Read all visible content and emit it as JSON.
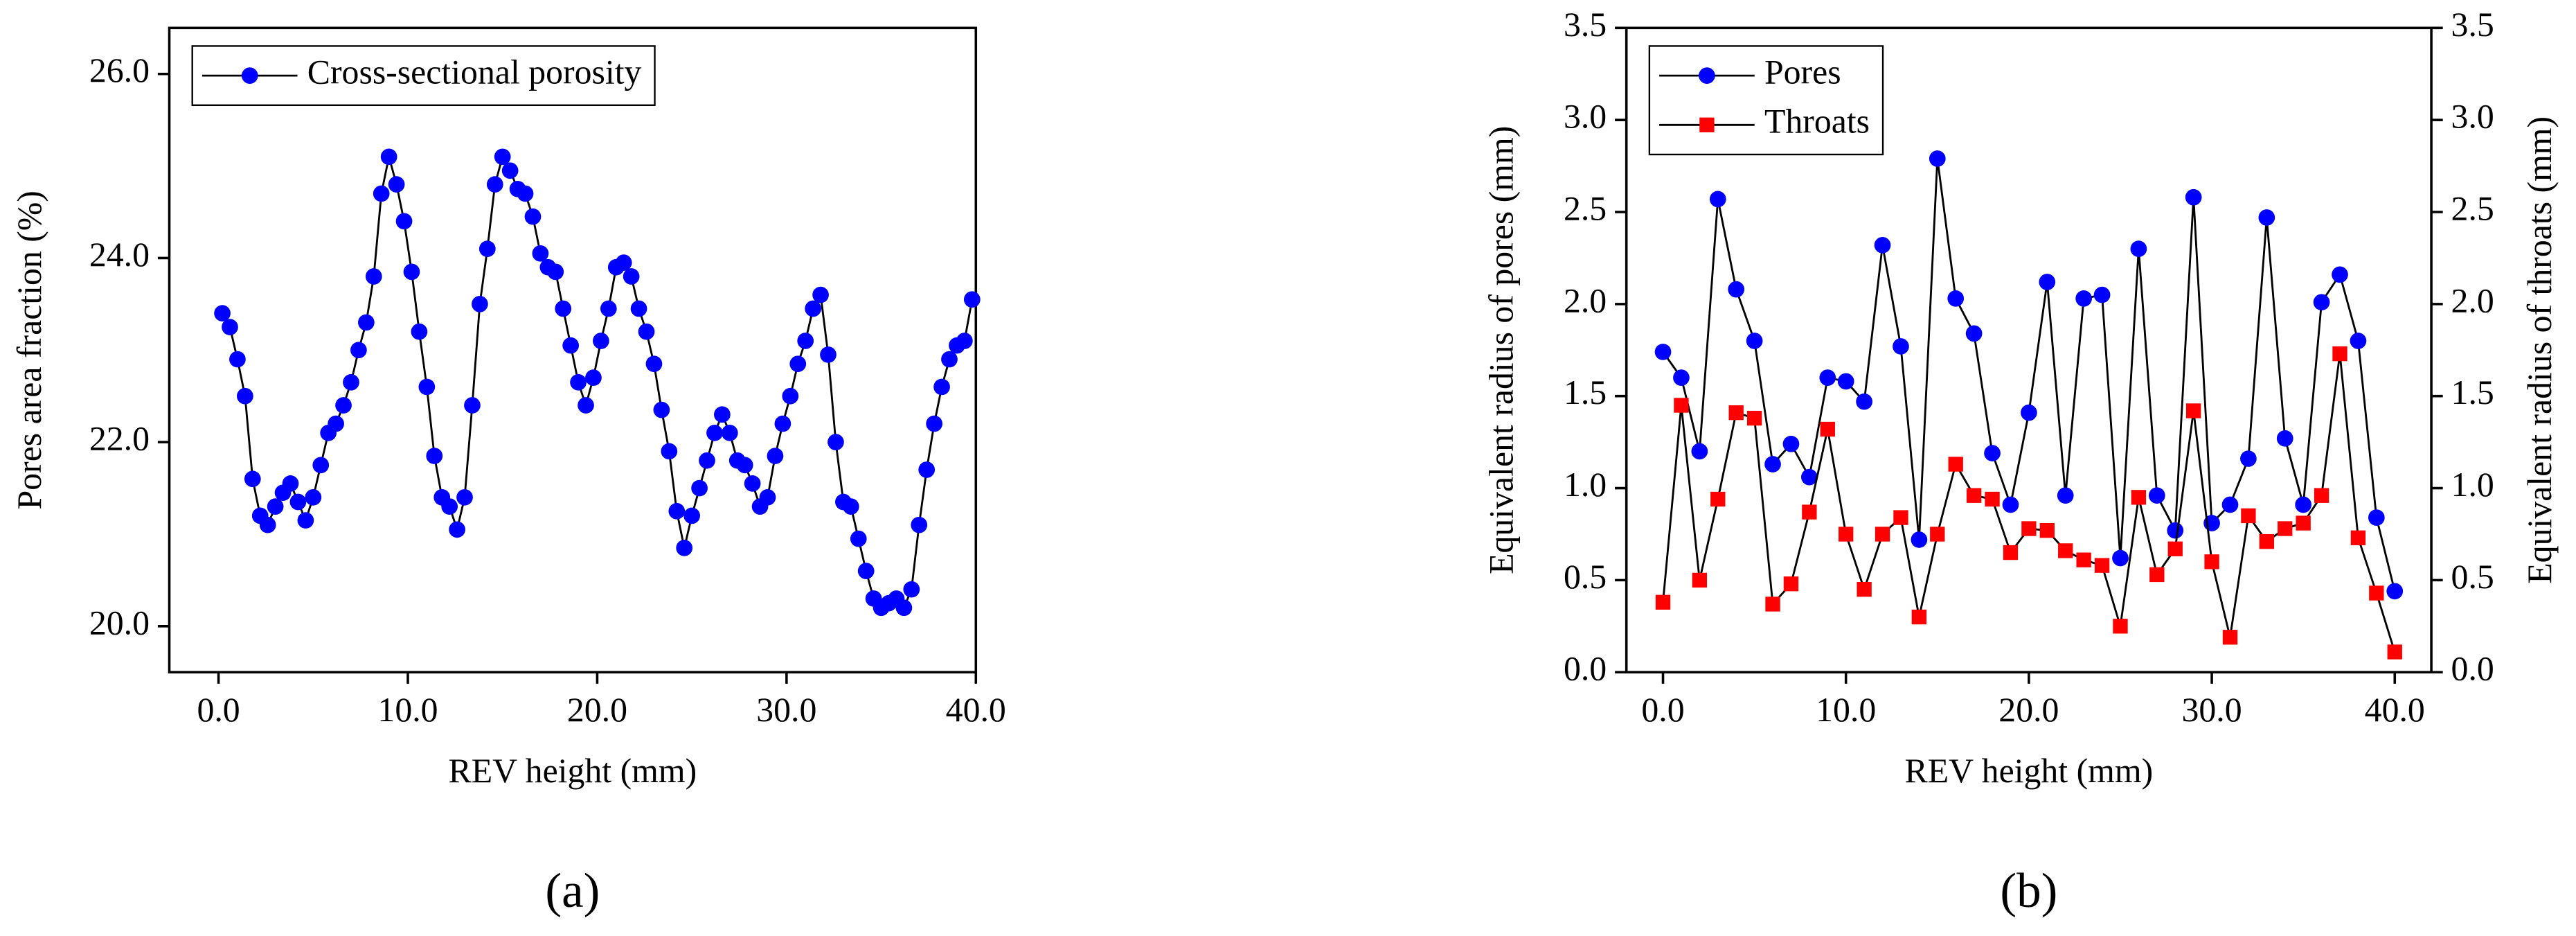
{
  "chart_data": [
    {
      "type": "line",
      "panel": "(a)",
      "xlabel": "REV height (mm)",
      "ylabel": "Pores area fraction (%)",
      "xlim": [
        -2.6,
        40
      ],
      "ylim": [
        19.5,
        26.5
      ],
      "xticks": [
        {
          "value": 0,
          "label": "0.0"
        },
        {
          "value": 10,
          "label": "10.0"
        },
        {
          "value": 20,
          "label": "20.0"
        },
        {
          "value": 30,
          "label": "30.0"
        },
        {
          "value": 40,
          "label": "40.0"
        }
      ],
      "yticks": [
        {
          "value": 20,
          "label": "20.0"
        },
        {
          "value": 22,
          "label": "22.0"
        },
        {
          "value": 24,
          "label": "24.0"
        },
        {
          "value": 26,
          "label": "26.0"
        }
      ],
      "legend": "upper left",
      "x": [
        0.2,
        0.6,
        1.0,
        1.4,
        1.8,
        2.2,
        2.6,
        3.0,
        3.4,
        3.8,
        4.2,
        4.6,
        5.0,
        5.4,
        5.8,
        6.2,
        6.6,
        7.0,
        7.4,
        7.8,
        8.2,
        8.6,
        9.0,
        9.4,
        9.8,
        10.2,
        10.6,
        11.0,
        11.4,
        11.8,
        12.2,
        12.6,
        13.0,
        13.4,
        13.8,
        14.2,
        14.6,
        15.0,
        15.4,
        15.8,
        16.2,
        16.6,
        17.0,
        17.4,
        17.8,
        18.2,
        18.6,
        19.0,
        19.4,
        19.8,
        20.2,
        20.6,
        21.0,
        21.4,
        21.8,
        22.2,
        22.6,
        23.0,
        23.4,
        23.8,
        24.2,
        24.6,
        25.0,
        25.4,
        25.8,
        26.2,
        26.6,
        27.0,
        27.4,
        27.8,
        28.2,
        28.6,
        29.0,
        29.4,
        29.8,
        30.2,
        30.6,
        31.0,
        31.4,
        31.8,
        32.2,
        32.6,
        33.0,
        33.4,
        33.8,
        34.2,
        34.6,
        35.0,
        35.4,
        35.8,
        36.2,
        36.6,
        37.0,
        37.4,
        37.8,
        38.2,
        38.6,
        39.0,
        39.4,
        39.8
      ],
      "series": [
        {
          "name": "Cross-sectional porosity",
          "color": "#0000ff",
          "line_color": "#000000",
          "marker": "circle",
          "values": [
            23.4,
            23.25,
            22.9,
            22.5,
            21.6,
            21.2,
            21.1,
            21.3,
            21.45,
            21.55,
            21.35,
            21.15,
            21.4,
            21.75,
            22.1,
            22.2,
            22.4,
            22.65,
            23.0,
            23.3,
            23.8,
            24.7,
            25.1,
            24.8,
            24.4,
            23.85,
            23.2,
            22.6,
            21.85,
            21.4,
            21.3,
            21.05,
            21.4,
            22.4,
            23.5,
            24.1,
            24.8,
            25.1,
            24.95,
            24.75,
            24.7,
            24.45,
            24.05,
            23.9,
            23.85,
            23.45,
            23.05,
            22.65,
            22.4,
            22.7,
            23.1,
            23.45,
            23.9,
            23.95,
            23.8,
            23.45,
            23.2,
            22.85,
            22.35,
            21.9,
            21.25,
            20.85,
            21.2,
            21.5,
            21.8,
            22.1,
            22.3,
            22.1,
            21.8,
            21.75,
            21.55,
            21.3,
            21.4,
            21.85,
            22.2,
            22.5,
            22.85,
            23.1,
            23.45,
            23.6,
            22.95,
            22.0,
            21.35,
            21.3,
            20.95,
            20.6,
            20.3,
            20.2,
            20.25,
            20.3,
            20.2,
            20.4,
            21.1,
            21.7,
            22.2,
            22.6,
            22.9,
            23.05,
            23.1,
            23.55
          ]
        }
      ]
    },
    {
      "type": "line",
      "panel": "(b)",
      "xlabel": "REV height (mm)",
      "ylabel": "Equivalent radius of pores (mm)",
      "y2label": "Equivalent radius of throats (mm)",
      "xlim": [
        -2,
        42
      ],
      "ylim": [
        0,
        3.5
      ],
      "y2lim": [
        0,
        3.5
      ],
      "xticks": [
        {
          "value": 0,
          "label": "0.0"
        },
        {
          "value": 10,
          "label": "10.0"
        },
        {
          "value": 20,
          "label": "20.0"
        },
        {
          "value": 30,
          "label": "30.0"
        },
        {
          "value": 40,
          "label": "40.0"
        }
      ],
      "yticks": [
        {
          "value": 0,
          "label": "0.0"
        },
        0.5,
        {
          "value": 1,
          "label": "1.0"
        },
        1.5,
        {
          "value": 2,
          "label": "2.0"
        },
        2.5,
        {
          "value": 3,
          "label": "3.0"
        },
        3.5
      ],
      "y2ticks": [
        {
          "value": 0,
          "label": "0.0"
        },
        0.5,
        {
          "value": 1,
          "label": "1.0"
        },
        1.5,
        {
          "value": 2,
          "label": "2.0"
        },
        2.5,
        {
          "value": 3,
          "label": "3.0"
        },
        3.5
      ],
      "legend": "upper left",
      "x": [
        0,
        1,
        2,
        3,
        4,
        5,
        6,
        7,
        8,
        9,
        10,
        11,
        12,
        13,
        14,
        15,
        16,
        17,
        18,
        19,
        20,
        21,
        22,
        23,
        24,
        25,
        26,
        27,
        28,
        29,
        30,
        31,
        32,
        33,
        34,
        35,
        36,
        37,
        38,
        39,
        40
      ],
      "series": [
        {
          "name": "Pores",
          "color": "#0000ff",
          "line_color": "#000000",
          "marker": "circle",
          "values": [
            1.74,
            1.6,
            1.2,
            2.57,
            2.08,
            1.8,
            1.13,
            1.24,
            1.06,
            1.6,
            1.58,
            1.47,
            2.32,
            1.77,
            0.72,
            2.79,
            2.03,
            1.84,
            1.19,
            0.91,
            1.41,
            2.12,
            0.96,
            2.03,
            2.05,
            0.62,
            2.3,
            0.96,
            0.77,
            2.58,
            0.81,
            0.91,
            1.16,
            2.47,
            1.27,
            0.91,
            2.01,
            2.16,
            1.8,
            0.84,
            0.44
          ]
        },
        {
          "name": "Throats",
          "color": "#ff0000",
          "line_color": "#000000",
          "marker": "square",
          "axis": "y2",
          "values": [
            0.38,
            1.45,
            0.5,
            0.94,
            1.41,
            1.38,
            0.37,
            0.48,
            0.87,
            1.32,
            0.75,
            0.45,
            0.75,
            0.84,
            0.3,
            0.75,
            1.13,
            0.96,
            0.94,
            0.65,
            0.78,
            0.77,
            0.66,
            0.61,
            0.58,
            0.25,
            0.95,
            0.53,
            0.67,
            1.42,
            0.6,
            0.19,
            0.85,
            0.71,
            0.78,
            0.81,
            0.96,
            1.73,
            0.73,
            0.43,
            0.11
          ]
        }
      ]
    }
  ]
}
